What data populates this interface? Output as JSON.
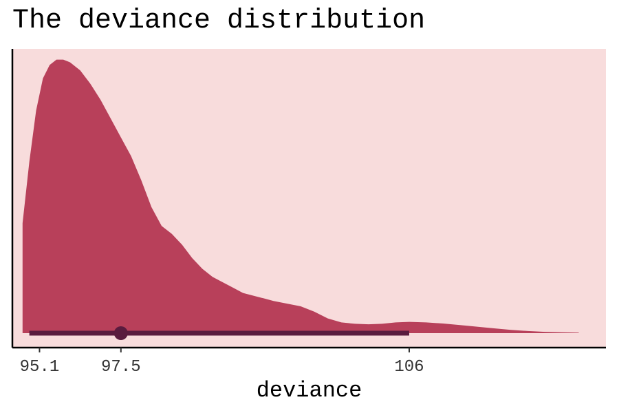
{
  "chart_data": {
    "type": "area",
    "title": "The deviance distribution",
    "xlabel": "deviance",
    "ylabel": "",
    "xlim": [
      94.3,
      111.8
    ],
    "ylim": [
      0,
      1.06
    ],
    "x_ticks": [
      95.1,
      97.5,
      106
    ],
    "x_tick_labels": [
      "95.1",
      "97.5",
      "106"
    ],
    "density": {
      "x": [
        94.6,
        94.8,
        95.0,
        95.2,
        95.4,
        95.6,
        95.8,
        96.0,
        96.3,
        96.6,
        96.9,
        97.2,
        97.5,
        97.8,
        98.1,
        98.4,
        98.7,
        99.0,
        99.3,
        99.6,
        99.9,
        100.2,
        100.5,
        100.8,
        101.1,
        101.4,
        101.7,
        102.0,
        102.4,
        102.8,
        103.2,
        103.6,
        104.0,
        104.4,
        104.8,
        105.2,
        105.6,
        106.0,
        106.5,
        107.0,
        107.5,
        108.0,
        108.5,
        109.0,
        109.5,
        110.0,
        110.5,
        111.0
      ],
      "y": [
        0.41,
        0.64,
        0.83,
        0.95,
        1.0,
        1.02,
        1.02,
        1.01,
        0.98,
        0.93,
        0.87,
        0.8,
        0.73,
        0.66,
        0.57,
        0.47,
        0.4,
        0.37,
        0.33,
        0.28,
        0.24,
        0.21,
        0.19,
        0.17,
        0.15,
        0.14,
        0.13,
        0.12,
        0.11,
        0.1,
        0.08,
        0.055,
        0.04,
        0.035,
        0.033,
        0.035,
        0.04,
        0.042,
        0.04,
        0.036,
        0.03,
        0.024,
        0.018,
        0.012,
        0.008,
        0.005,
        0.003,
        0.002
      ]
    },
    "point_estimate": 97.5,
    "interval": [
      94.8,
      106
    ],
    "grid": false,
    "legend": "none",
    "colors": {
      "panel_background": "#f8dcdc",
      "density_fill": "#b8405a",
      "interval": "#5a1b3e",
      "axis": "#000000"
    }
  }
}
